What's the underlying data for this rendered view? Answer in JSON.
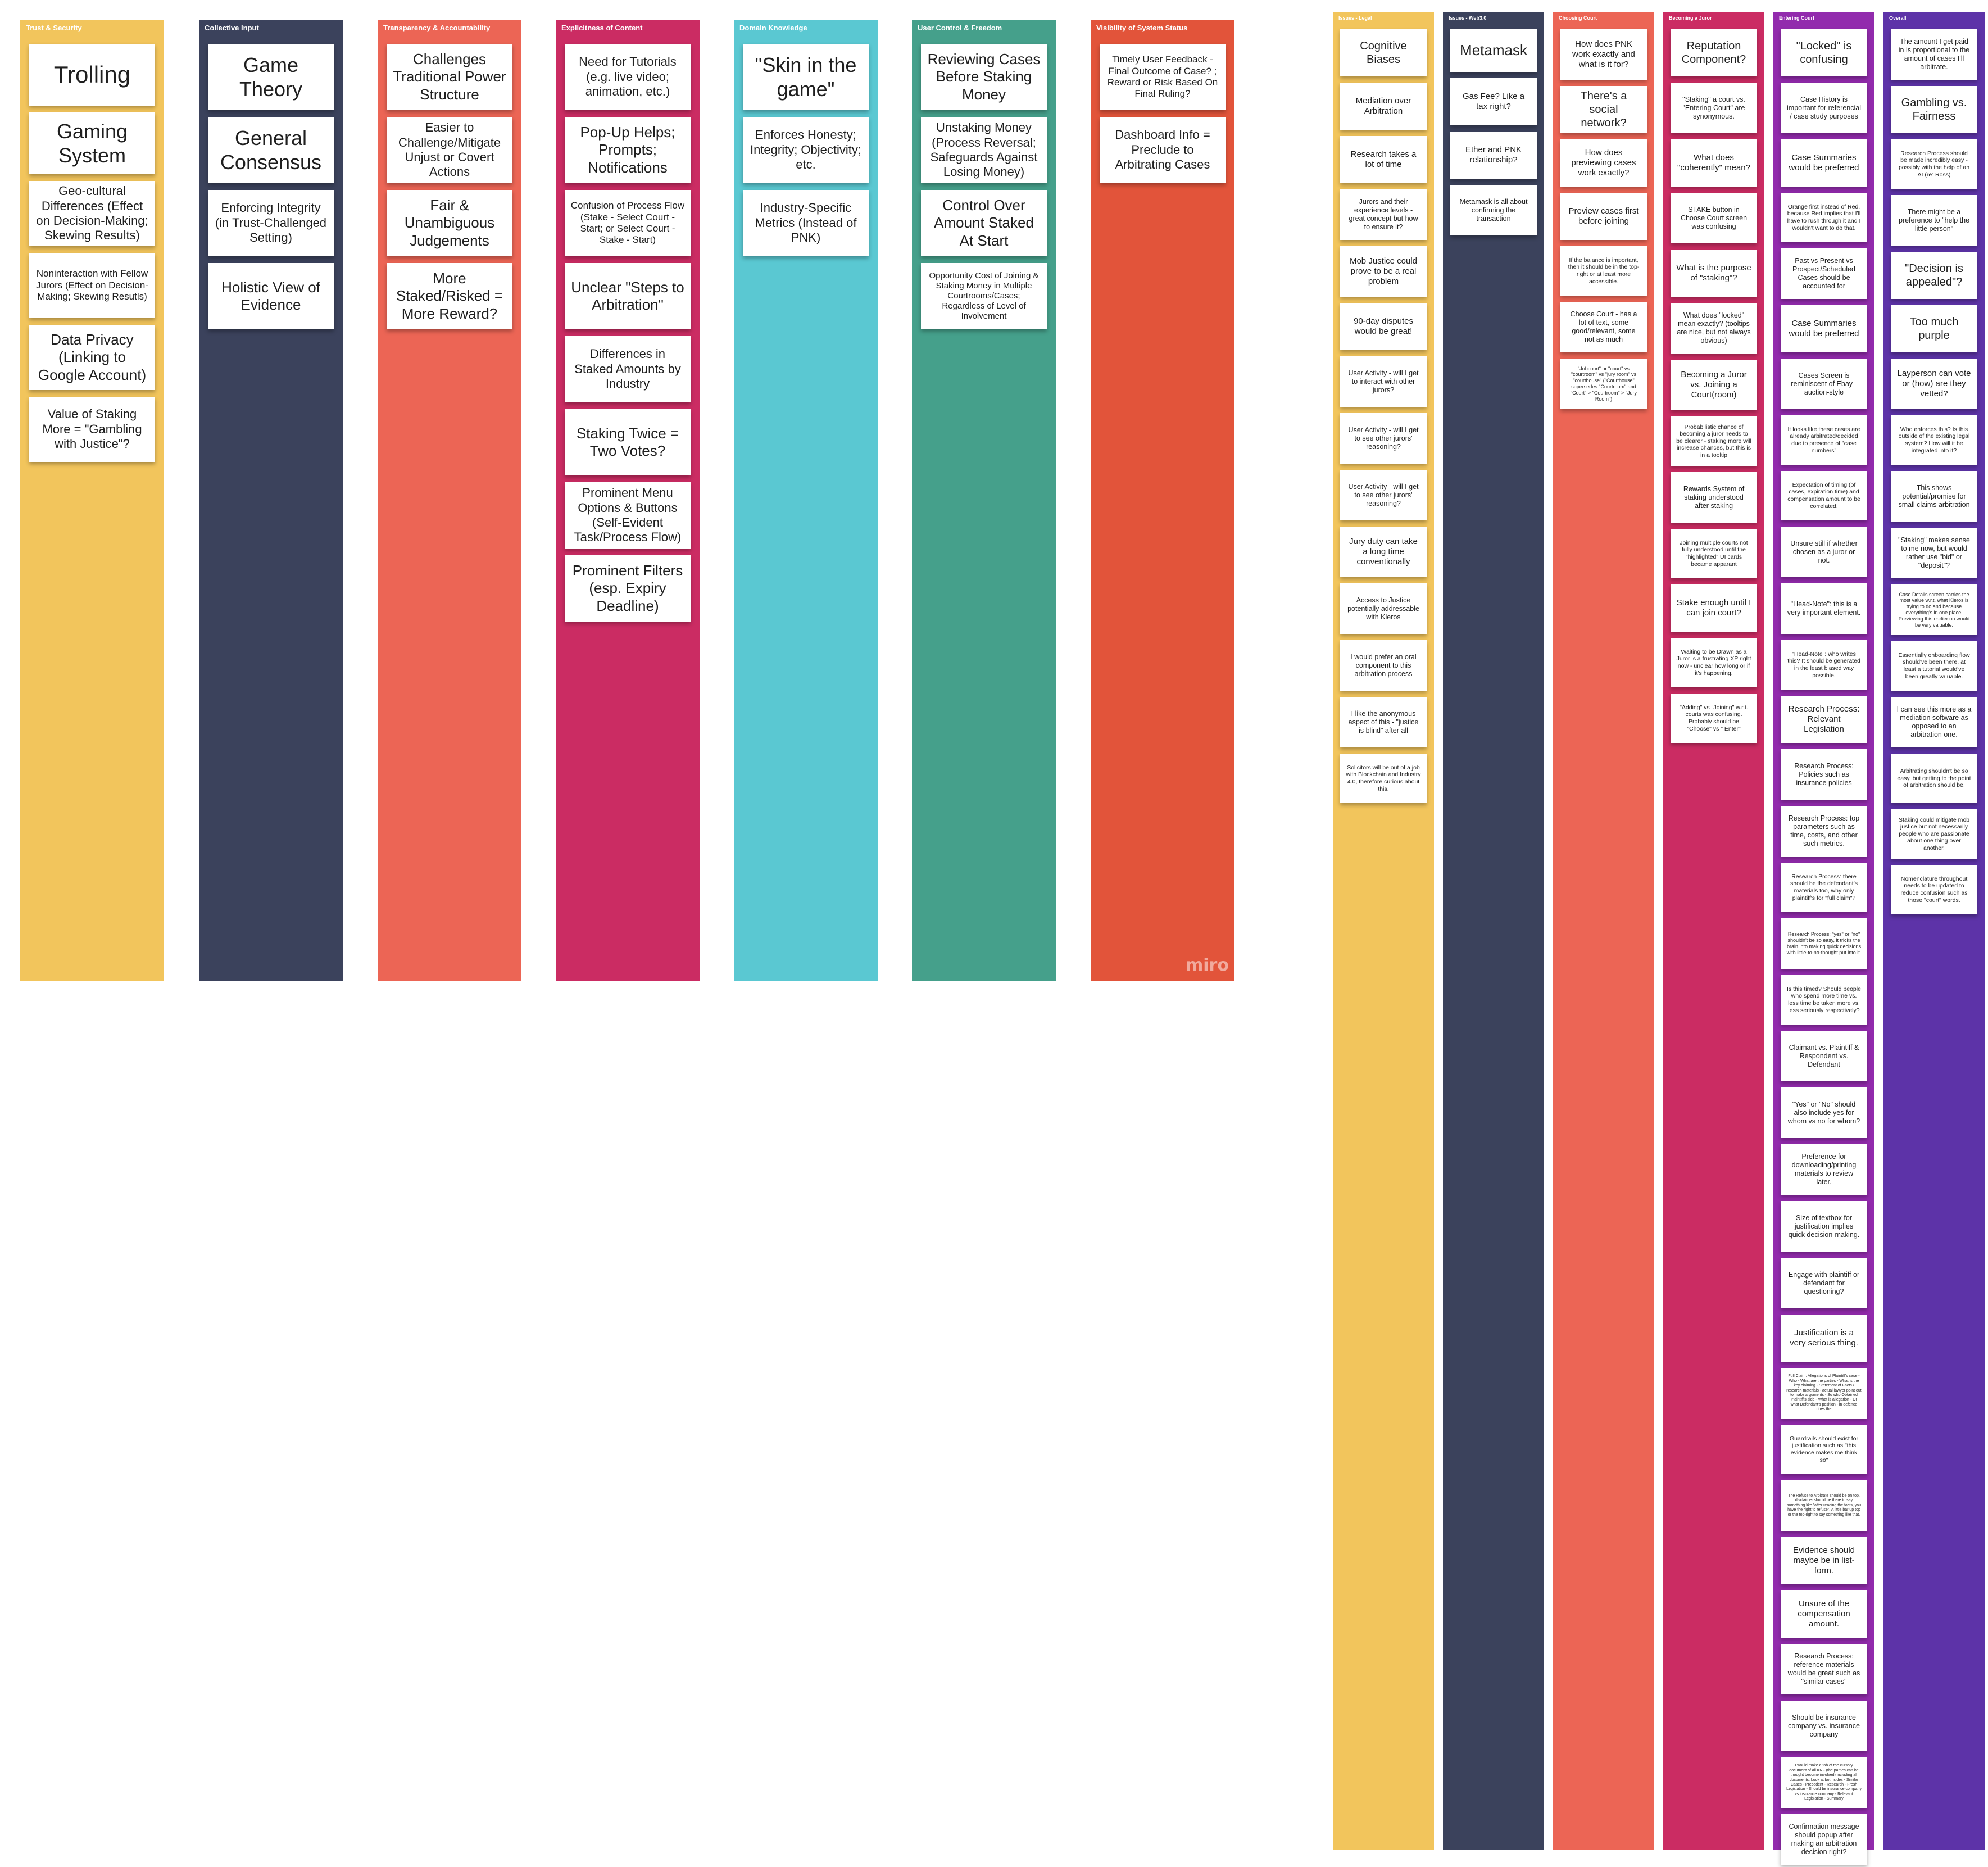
{
  "board": {
    "watermark": "miro"
  },
  "columns": [
    {
      "title": "Trust & Security",
      "color": "#f2c55c",
      "notes": [
        {
          "text": "Trolling"
        },
        {
          "text": "Gaming System"
        },
        {
          "text": "Geo-cultural Differences (Effect on Decision-Making; Skewing Results)"
        },
        {
          "text": "Noninteraction with Fellow Jurors (Effect on Decision-Making; Skewing Resutls)"
        },
        {
          "text": "Data Privacy (Linking to Google Account)"
        },
        {
          "text": "Value of Staking More = \"Gambling with Justice\"?"
        }
      ]
    },
    {
      "title": "Collective Input",
      "color": "#3b425c",
      "notes": [
        {
          "text": "Game Theory"
        },
        {
          "text": "General Consensus"
        },
        {
          "text": "Enforcing Integrity (in Trust-Challenged Setting)"
        },
        {
          "text": "Holistic View of Evidence"
        }
      ]
    },
    {
      "title": "Transparency & Accountability",
      "color": "#ec6555",
      "notes": [
        {
          "text": "Challenges Traditional Power Structure"
        },
        {
          "text": "Easier to Challenge/Mitigate Unjust or Covert Actions"
        },
        {
          "text": "Fair & Unambiguous Judgements"
        },
        {
          "text": "More Staked/Risked = More Reward?"
        }
      ]
    },
    {
      "title": "Explicitness of Content",
      "color": "#cb2c63",
      "notes": [
        {
          "text": "Need for Tutorials (e.g. live video; animation, etc.)"
        },
        {
          "text": "Pop-Up Helps; Prompts; Notifications"
        },
        {
          "text": "Confusion of Process Flow (Stake - Select Court - Start; or Select Court - Stake - Start)"
        },
        {
          "text": "Unclear \"Steps to Arbitration\""
        },
        {
          "text": "Differences in Staked Amounts by Industry"
        },
        {
          "text": "Staking Twice = Two Votes?"
        },
        {
          "text": "Prominent Menu Options & Buttons (Self-Evident Task/Process Flow)"
        },
        {
          "text": "Prominent Filters (esp. Expiry Deadline)"
        }
      ]
    },
    {
      "title": "Domain Knowledge",
      "color": "#5ac8d2",
      "notes": [
        {
          "text": "\"Skin in the game\""
        },
        {
          "text": "Enforces Honesty; Integrity; Objectivity; etc."
        },
        {
          "text": "Industry-Specific Metrics (Instead of PNK)"
        }
      ]
    },
    {
      "title": "User Control & Freedom",
      "color": "#45a08b",
      "notes": [
        {
          "text": "Reviewing Cases Before Staking Money"
        },
        {
          "text": "Unstaking Money (Process Reversal; Safeguards Against Losing Money)"
        },
        {
          "text": "Control Over Amount Staked At Start"
        },
        {
          "text": "Opportunity Cost of Joining & Staking Money in Multiple Courtrooms/Cases; Regardless of Level of Involvement"
        }
      ]
    },
    {
      "title": "Visibility of System Status",
      "color": "#e2543a",
      "notes": [
        {
          "text": "Timely User Feedback - Final Outcome of Case? ; Reward or Risk Based On Final Ruling?"
        },
        {
          "text": "Dashboard Info = Preclude to Arbitrating Cases"
        }
      ]
    },
    {
      "title": "Issues - Legal",
      "color": "#f2c55c",
      "notes": [
        {
          "text": "Cognitive Biases"
        },
        {
          "text": "Mediation over Arbitration"
        },
        {
          "text": "Research takes a lot of time"
        },
        {
          "text": "Jurors and their experience levels - great concept but how to ensure it?"
        },
        {
          "text": "Mob Justice could prove to be a real problem"
        },
        {
          "text": "90-day disputes would be great!"
        },
        {
          "text": "User Activity - will I get to interact with other jurors?"
        },
        {
          "text": "User Activity - will I get to see other jurors' reasoning?"
        },
        {
          "text": "User Activity - will I get to see other jurors' reasoning?"
        },
        {
          "text": "Jury duty can take a long time conventionally"
        },
        {
          "text": "Access to Justice potentially addressable with Kleros"
        },
        {
          "text": "I would prefer an oral component to this arbitration process"
        },
        {
          "text": "I like the anonymous aspect of this - \"justice is blind\" after all"
        },
        {
          "text": "Solicitors will be out of a job with Blockchain and Industry 4.0, therefore curious about this."
        }
      ]
    },
    {
      "title": "Issues - Web3.0",
      "color": "#3b425c",
      "notes": [
        {
          "text": "Metamask"
        },
        {
          "text": "Gas Fee? Like a tax right?"
        },
        {
          "text": "Ether and PNK relationship?"
        },
        {
          "text": "Metamask is all about confirming the transaction"
        }
      ]
    },
    {
      "title": "Choosing Court",
      "color": "#ec6555",
      "notes": [
        {
          "text": "How does PNK work exactly and what is it for?"
        },
        {
          "text": "There's a social network?"
        },
        {
          "text": "How does previewing cases work exactly?"
        },
        {
          "text": "Preview cases first before joining"
        },
        {
          "text": "If the balance is important, then it should be in the top-right or at least more accessible."
        },
        {
          "text": "Choose Court - has a lot of text, some good/relevant, some not as much"
        },
        {
          "text": "\"Jobcourt\" or \"court\" vs \"courtroom\" vs \"jury room\" vs \"courthouse\" (\"Courthouse\" supersedes \"Courtroom\" and \"Court\" > \"Courtroom\" > \"Jury Room\")"
        }
      ]
    },
    {
      "title": "Becoming a Juror",
      "color": "#cb2c63",
      "notes": [
        {
          "text": "Reputation Component?"
        },
        {
          "text": "\"Staking\" a court vs. \"Entering Court\" are synonymous."
        },
        {
          "text": "What does \"coherently\" mean?"
        },
        {
          "text": "STAKE button in Choose Court screen was confusing"
        },
        {
          "text": "What is the purpose of \"staking\"?"
        },
        {
          "text": "What does \"locked\" mean exactly? (tooltips are nice, but not always obvious)"
        },
        {
          "text": "Becoming a Juror vs. Joining a Court(room)"
        },
        {
          "text": "Probabilistic chance of becoming a juror needs to be clearer - staking more will increase chances, but this is in a tooltip"
        },
        {
          "text": "Rewards System of staking understood after staking"
        },
        {
          "text": "Joining multiple courts not fully understood until the \"highlighted\" UI cards became apparant"
        },
        {
          "text": "Stake enough until I can join court?"
        },
        {
          "text": "Waiting to be Drawn as a Juror is a frustrating XP right now - unclear how long or if it's happening."
        },
        {
          "text": "\"Adding\" vs \"Joining\" w.r.t. courts was confusing. Probably should be \"Choose\" vs \" Enter\""
        }
      ]
    },
    {
      "title": "Entering Court",
      "color": "#922bad",
      "notes": [
        {
          "text": "\"Locked\" is confusing"
        },
        {
          "text": "Case History is important for referencial / case study purposes"
        },
        {
          "text": "Case Summaries would be preferred"
        },
        {
          "text": "Orange first instead of Red, because Red implies that I'll have to rush through it and I wouldn't want to do that."
        },
        {
          "text": "Past vs Present vs Prospect/Scheduled Cases should be accounted for"
        },
        {
          "text": "Case Summaries would be preferred"
        },
        {
          "text": "Cases Screen is reminiscent of Ebay - auction-style"
        },
        {
          "text": "It looks like these cases are already arbitrated/decided due to presence of \"case numbers\""
        },
        {
          "text": "Expectation of timing (of cases, expiration time) and compensation amount to be correlated."
        },
        {
          "text": "Unsure still if whether chosen as a juror or not."
        },
        {
          "text": "\"Head-Note\": this is a very important element."
        },
        {
          "text": "\"Head-Note\": who writes this? It should be generated in the least biased way possible."
        },
        {
          "text": "Research Process: Relevant Legislation"
        },
        {
          "text": "Research Process: Policies such as insurance policies"
        },
        {
          "text": "Research Process: top parameters such as time, costs, and other such metrics."
        },
        {
          "text": "Research Process: there should be the defendant's materials too, why only plaintiff's for \"full claim\"?"
        },
        {
          "text": "Research Process: \"yes\" or \"no\" shouldn't be so easy, it tricks the brain into making quick decisions with little-to-no-thought put into it."
        },
        {
          "text": "Is this timed? Should people who spend more time vs. less time be taken more vs. less seriously respectively?"
        },
        {
          "text": "Claimant vs. Plaintiff & Respondent vs. Defendant"
        },
        {
          "text": "\"Yes\" or \"No\" should also include yes for whom vs no for whom?"
        },
        {
          "text": "Preference for downloading/printing materials to review later."
        },
        {
          "text": "Size of textbox for justification implies quick decision-making."
        },
        {
          "text": "Engage with plaintiff or defendant for questioning?"
        },
        {
          "text": "Justification is a very serious thing."
        },
        {
          "text": "Full Claim: Allegations of Plaintiff's case - Who - What are the parties - What is the key claiming - Statement of Facts / research materials - actual lawyer point out to make arguments - So who Obtained Plaintiff's side - What is allegation - Or what Defendant's position - in defence does the"
        },
        {
          "text": "Guardrails should exist for justification such as \"this evidence makes me think so\""
        },
        {
          "text": "The Refuse to Arbitrate should be on top, disclaimer should be there to say something like \"after reading the facts, you have the right to refuse\". A little bar up top or the top-right to say something like that."
        },
        {
          "text": "Evidence should maybe be in list-form."
        },
        {
          "text": "Unsure of the compensation amount."
        },
        {
          "text": "Research Process: reference materials would be great such as \"similar cases\""
        },
        {
          "text": "Should be insurance company vs. insurance company"
        },
        {
          "text": "I would make a tab of the cursory document of all KNF (the parties can be thought become involved) including all documents. Look at both sides - Similar Cases - Precedent - Research - Fresh Legislation - Should be insurance company vs insurance company - Relevant Legislation - Summary"
        },
        {
          "text": "Confirmation message should popup after making an arbitration decision right?"
        }
      ]
    },
    {
      "title": "Overall",
      "color": "#5d33a8",
      "notes": [
        {
          "text": "The amount I get paid in is proportional to the amount of cases I'll arbitrate."
        },
        {
          "text": "Gambling vs. Fairness"
        },
        {
          "text": "Research Process should be made incredibly easy - possibly with the help of an AI (re: Ross)"
        },
        {
          "text": "There might be a preference to \"help the little person\""
        },
        {
          "text": "\"Decision is appealed\"?"
        },
        {
          "text": "Too much purple"
        },
        {
          "text": "Layperson can vote or (how) are they vetted?"
        },
        {
          "text": "Who enforces this? Is this outside of the existing legal system? How will it be integrated into it?"
        },
        {
          "text": "This shows potential/promise for small claims arbitration"
        },
        {
          "text": "\"Staking\" makes sense to me now, but would rather use \"bid\" or \"deposit\"?"
        },
        {
          "text": "Case Details screen carries the most value w.r.t. what Kleros is trying to do and because everything's in one place. Previewing this earlier on would be very valuable."
        },
        {
          "text": "Essentially onboarding flow should've been there, at least a tutorial would've been greatly valuable."
        },
        {
          "text": "I can see this more as a mediation software as opposed to an arbitration one."
        },
        {
          "text": "Arbitrating shouldn't be so easy, but getting to the point of arbitration should be."
        },
        {
          "text": "Staking could mitigate mob justice but not necessarily people who are passionate about one thing over another."
        },
        {
          "text": "Nomenclature throughout needs to be updated to reduce confusion such as those \"court\" words."
        }
      ]
    }
  ]
}
